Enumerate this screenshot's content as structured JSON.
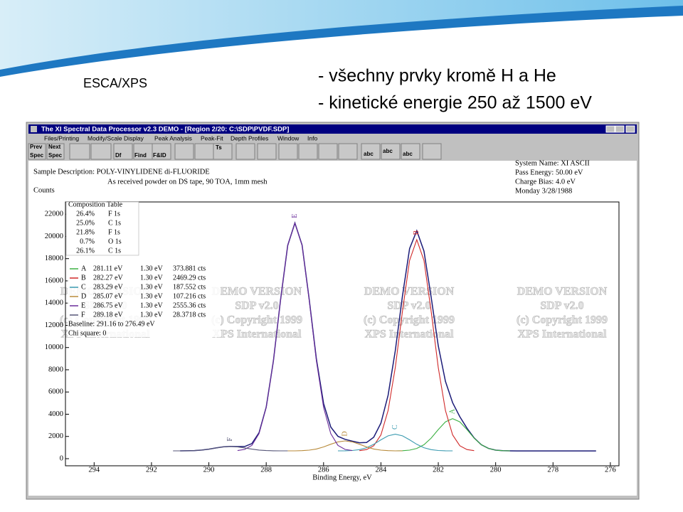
{
  "slide": {
    "heading": "ESCA/XPS",
    "bullets": [
      "- všechny prvky kromě H a He",
      "- kinetické energie 250 až 1500 eV"
    ]
  },
  "window": {
    "title": "The XI Spectral Data Processor v2.3 DEMO - [Region 2/20: C:\\SDP\\PVDF.SDP]",
    "menu": [
      "Files/Printing",
      "Modify/Scale Display",
      "Peak Analysis",
      "Peak-Fit",
      "Depth Profiles",
      "Window",
      "Info"
    ],
    "toolbar": [
      "Prev",
      "Spec",
      "Next",
      "Spec",
      "Df",
      "Find",
      "F&ID",
      "Ts",
      "abc",
      "abc",
      "abc"
    ]
  },
  "sample": {
    "description": "Sample Description: POLY-VINYLIDENE di-FLUORIDE",
    "note": "As received powder on DS tape, 90 TOA, 1mm mesh",
    "system": [
      "System Name:  XI ASCII",
      "Pass Energy:  50.00 eV",
      "Charge Bias:   4.0 eV",
      "Monday  3/28/1988"
    ]
  },
  "composition_table": {
    "title": "Composition Table",
    "rows": [
      [
        "26.4%",
        "F 1s"
      ],
      [
        "25.0%",
        "C 1s"
      ],
      [
        "21.8%",
        "F 1s"
      ],
      [
        "0.7%",
        "O 1s"
      ],
      [
        "26.1%",
        "C 1s"
      ]
    ]
  },
  "fit_table": {
    "rows": [
      [
        "A",
        "281.11 eV",
        "1.30 eV",
        "373.881 cts"
      ],
      [
        "B",
        "282.27 eV",
        "1.30 eV",
        "2469.29 cts"
      ],
      [
        "C",
        "283.29 eV",
        "1.30 eV",
        "187.552 cts"
      ],
      [
        "D",
        "285.07 eV",
        "1.30 eV",
        "107.216 cts"
      ],
      [
        "E",
        "286.75 eV",
        "1.30 eV",
        "2555.36 cts"
      ],
      [
        "F",
        "289.18 eV",
        "1.30 eV",
        "28.3718 cts"
      ]
    ],
    "baseline": "Baseline: 291.16 to 276.49 eV",
    "chi_square": "Chi square: 0"
  },
  "watermark": [
    "DEMO VERSION",
    "SDP v2.0",
    "(c) Copyright 1999",
    "XPS International"
  ],
  "chart_data": {
    "type": "line",
    "y_label": "Counts",
    "x_label": "Binding Energy, eV",
    "xlim": [
      295,
      275.7
    ],
    "ylim": [
      -640,
      23100
    ],
    "xticks": [
      294,
      292,
      290,
      288,
      286,
      284,
      282,
      280,
      278,
      276
    ],
    "yticks": [
      0,
      2000,
      4000,
      6000,
      8000,
      10000,
      12000,
      14000,
      16000,
      18000,
      20000,
      22000
    ],
    "series": [
      {
        "color": "#1c1c78",
        "x": [
          291,
          290.75,
          290.5,
          290.25,
          290,
          289.75,
          289.5,
          289.25,
          289,
          288.75,
          288.5,
          288.25,
          288,
          287.75,
          287.5,
          287.25,
          287,
          286.75,
          286.5,
          286.25,
          286,
          285.75,
          285.5,
          285.25,
          285,
          284.75,
          284.5,
          284.25,
          284,
          283.75,
          283.5,
          283.25,
          283,
          282.75,
          282.5,
          282.25,
          282,
          281.75,
          281.5,
          281.25,
          281,
          280.75,
          280.5,
          280.25,
          280,
          279.75,
          279.5,
          279.25,
          279,
          278.75,
          278.5,
          278.25,
          278,
          277.75,
          277.5,
          277.25,
          277,
          276.75,
          276.5
        ],
        "values": [
          703,
          710,
          730,
          776,
          858,
          965,
          1061,
          1100,
          1088,
          1094,
          1356,
          2326,
          4646,
          8808,
          14274,
          19192,
          21206,
          19213,
          14339,
          8970,
          4972,
          2846,
          2010,
          1738,
          1575,
          1434,
          1462,
          1927,
          3197,
          5705,
          9715,
          14650,
          18901,
          20512,
          18679,
          14537,
          10161,
          6954,
          5038,
          3778,
          2739,
          1871,
          1254,
          919,
          770,
          718,
          704,
          700,
          700,
          700,
          700,
          700,
          700,
          700,
          700,
          700,
          700,
          700,
          700
        ]
      },
      {
        "name": "A",
        "color": "#3cb043",
        "x": [
          283.5,
          283.25,
          283,
          282.75,
          282.5,
          282.25,
          282,
          281.75,
          281.5,
          281.25,
          281,
          280.75,
          280.5,
          280.25,
          280,
          279.75,
          279.5
        ],
        "values": [
          704,
          718,
          770,
          919,
          1254,
          1846,
          2620,
          3316,
          3600,
          3316,
          2620,
          1846,
          1254,
          919,
          770,
          718,
          704
        ]
      },
      {
        "name": "B",
        "color": "#d02828",
        "x": [
          284.75,
          284.5,
          284.25,
          284,
          283.75,
          283.5,
          283.25,
          283,
          282.75,
          282.5,
          282.25,
          282,
          281.75,
          281.5,
          281.25,
          281,
          280.75
        ],
        "values": [
          725,
          819,
          1162,
          2136,
          4329,
          8205,
          13278,
          17838,
          19700,
          17838,
          13278,
          8205,
          4329,
          2136,
          1162,
          819,
          725
        ]
      },
      {
        "name": "C",
        "color": "#3a9ab0",
        "x": [
          285.5,
          285.25,
          285,
          284.75,
          284.5,
          284.25,
          284,
          283.75,
          283.5,
          283.25,
          283,
          282.75,
          282.5,
          282.25,
          282,
          281.75,
          281.5
        ],
        "values": [
          702,
          709,
          736,
          813,
          987,
          1293,
          1693,
          2053,
          2200,
          2053,
          1693,
          1293,
          987,
          813,
          736,
          709,
          702
        ]
      },
      {
        "name": "D",
        "color": "#b88a3a",
        "x": [
          287.25,
          287,
          286.75,
          286.5,
          286.25,
          286,
          285.75,
          285.5,
          285.25,
          285,
          284.75,
          284.5,
          284.25,
          284,
          283.75,
          283.5,
          283.25
        ],
        "values": [
          701,
          706,
          722,
          768,
          872,
          1056,
          1296,
          1512,
          1600,
          1512,
          1296,
          1056,
          872,
          768,
          722,
          706,
          701
        ]
      },
      {
        "name": "E",
        "color": "#6a2c9a",
        "x": [
          289,
          288.75,
          288.5,
          288.25,
          288,
          287.75,
          287.5,
          287.25,
          287,
          286.75,
          286.5,
          286.25,
          286,
          285.75,
          285.5,
          285.25,
          285
        ],
        "values": [
          727,
          829,
          1198,
          2250,
          4616,
          8798,
          14271,
          19191,
          21200,
          19191,
          14271,
          8798,
          4616,
          2250,
          1198,
          829,
          727
        ]
      },
      {
        "name": "F",
        "color": "#555577",
        "x": [
          291.25,
          291,
          290.75,
          290.5,
          290.25,
          290,
          289.75,
          289.5,
          289.25,
          289,
          288.75,
          288.5,
          288.25,
          288,
          287.75,
          287.5,
          287.25
        ],
        "values": [
          701,
          703,
          710,
          730,
          776,
          858,
          965,
          1061,
          1100,
          1061,
          965,
          858,
          776,
          730,
          710,
          703,
          701
        ]
      }
    ]
  }
}
